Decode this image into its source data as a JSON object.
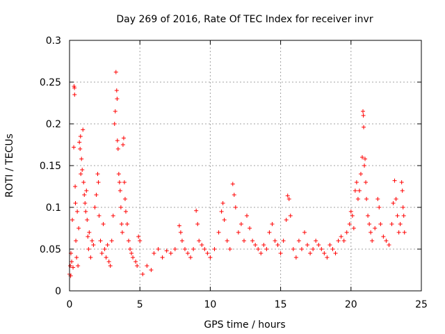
{
  "chart_data": {
    "type": "scatter",
    "title": "Day 269 of 2016, Rate Of TEC Index for receiver invr",
    "xlabel": "GPS time / hours",
    "ylabel": "ROTI / TECUs",
    "xlim": [
      0,
      25
    ],
    "ylim": [
      0,
      0.3
    ],
    "grid": true,
    "marker": "+",
    "series_color": "#ff0000",
    "x_ticks": [
      {
        "value": 0,
        "label": "0"
      },
      {
        "value": 5,
        "label": "5"
      },
      {
        "value": 10,
        "label": "10"
      },
      {
        "value": 15,
        "label": "15"
      },
      {
        "value": 20,
        "label": "20"
      },
      {
        "value": 25,
        "label": "25"
      }
    ],
    "y_ticks": [
      {
        "value": 0,
        "label": "0"
      },
      {
        "value": 0.05,
        "label": "0.05"
      },
      {
        "value": 0.1,
        "label": "0.1"
      },
      {
        "value": 0.15,
        "label": "0.15"
      },
      {
        "value": 0.2,
        "label": "0.2"
      },
      {
        "value": 0.25,
        "label": "0.25"
      },
      {
        "value": 0.3,
        "label": "0.3"
      }
    ],
    "points": [
      [
        0.0,
        0.02
      ],
      [
        0.05,
        0.03
      ],
      [
        0.08,
        0.018
      ],
      [
        0.1,
        0.045
      ],
      [
        0.15,
        0.035
      ],
      [
        0.2,
        0.085
      ],
      [
        0.25,
        0.028
      ],
      [
        0.3,
        0.172
      ],
      [
        0.32,
        0.245
      ],
      [
        0.35,
        0.243
      ],
      [
        0.36,
        0.235
      ],
      [
        0.4,
        0.125
      ],
      [
        0.42,
        0.105
      ],
      [
        0.45,
        0.06
      ],
      [
        0.5,
        0.04
      ],
      [
        0.55,
        0.095
      ],
      [
        0.6,
        0.03
      ],
      [
        0.65,
        0.075
      ],
      [
        0.7,
        0.178
      ],
      [
        0.75,
        0.17
      ],
      [
        0.78,
        0.185
      ],
      [
        0.8,
        0.14
      ],
      [
        0.85,
        0.158
      ],
      [
        0.9,
        0.145
      ],
      [
        0.95,
        0.193
      ],
      [
        1.0,
        0.13
      ],
      [
        1.05,
        0.115
      ],
      [
        1.1,
        0.105
      ],
      [
        1.15,
        0.095
      ],
      [
        1.2,
        0.12
      ],
      [
        1.25,
        0.085
      ],
      [
        1.3,
        0.065
      ],
      [
        1.35,
        0.05
      ],
      [
        1.4,
        0.07
      ],
      [
        1.5,
        0.04
      ],
      [
        1.6,
        0.06
      ],
      [
        1.7,
        0.055
      ],
      [
        1.8,
        0.1
      ],
      [
        1.9,
        0.115
      ],
      [
        2.0,
        0.14
      ],
      [
        2.05,
        0.13
      ],
      [
        2.1,
        0.09
      ],
      [
        2.2,
        0.06
      ],
      [
        2.3,
        0.045
      ],
      [
        2.4,
        0.08
      ],
      [
        2.5,
        0.05
      ],
      [
        2.6,
        0.04
      ],
      [
        2.7,
        0.055
      ],
      [
        2.8,
        0.035
      ],
      [
        2.9,
        0.03
      ],
      [
        3.0,
        0.06
      ],
      [
        3.1,
        0.09
      ],
      [
        3.2,
        0.2
      ],
      [
        3.25,
        0.215
      ],
      [
        3.3,
        0.262
      ],
      [
        3.35,
        0.24
      ],
      [
        3.38,
        0.23
      ],
      [
        3.4,
        0.18
      ],
      [
        3.45,
        0.17
      ],
      [
        3.5,
        0.14
      ],
      [
        3.55,
        0.13
      ],
      [
        3.6,
        0.12
      ],
      [
        3.65,
        0.1
      ],
      [
        3.7,
        0.08
      ],
      [
        3.75,
        0.07
      ],
      [
        3.8,
        0.175
      ],
      [
        3.85,
        0.183
      ],
      [
        3.9,
        0.13
      ],
      [
        3.95,
        0.11
      ],
      [
        4.0,
        0.095
      ],
      [
        4.1,
        0.08
      ],
      [
        4.2,
        0.06
      ],
      [
        4.3,
        0.05
      ],
      [
        4.4,
        0.045
      ],
      [
        4.5,
        0.04
      ],
      [
        4.7,
        0.035
      ],
      [
        4.8,
        0.03
      ],
      [
        4.9,
        0.065
      ],
      [
        5.0,
        0.06
      ],
      [
        5.2,
        0.02
      ],
      [
        5.5,
        0.03
      ],
      [
        5.8,
        0.025
      ],
      [
        6.0,
        0.045
      ],
      [
        6.3,
        0.05
      ],
      [
        6.6,
        0.04
      ],
      [
        6.9,
        0.048
      ],
      [
        7.2,
        0.045
      ],
      [
        7.5,
        0.05
      ],
      [
        7.8,
        0.078
      ],
      [
        7.9,
        0.07
      ],
      [
        8.0,
        0.06
      ],
      [
        8.2,
        0.05
      ],
      [
        8.4,
        0.045
      ],
      [
        8.6,
        0.04
      ],
      [
        8.8,
        0.05
      ],
      [
        9.0,
        0.096
      ],
      [
        9.1,
        0.08
      ],
      [
        9.2,
        0.06
      ],
      [
        9.4,
        0.055
      ],
      [
        9.6,
        0.05
      ],
      [
        9.8,
        0.045
      ],
      [
        10.0,
        0.04
      ],
      [
        10.3,
        0.05
      ],
      [
        10.6,
        0.07
      ],
      [
        10.8,
        0.095
      ],
      [
        10.9,
        0.105
      ],
      [
        11.0,
        0.085
      ],
      [
        11.2,
        0.06
      ],
      [
        11.4,
        0.05
      ],
      [
        11.6,
        0.128
      ],
      [
        11.7,
        0.115
      ],
      [
        11.8,
        0.1
      ],
      [
        12.0,
        0.07
      ],
      [
        12.2,
        0.08
      ],
      [
        12.4,
        0.06
      ],
      [
        12.6,
        0.09
      ],
      [
        12.8,
        0.075
      ],
      [
        13.0,
        0.06
      ],
      [
        13.2,
        0.055
      ],
      [
        13.4,
        0.05
      ],
      [
        13.6,
        0.045
      ],
      [
        13.8,
        0.055
      ],
      [
        14.0,
        0.05
      ],
      [
        14.2,
        0.07
      ],
      [
        14.4,
        0.08
      ],
      [
        14.6,
        0.06
      ],
      [
        14.8,
        0.055
      ],
      [
        15.0,
        0.045
      ],
      [
        15.2,
        0.06
      ],
      [
        15.4,
        0.085
      ],
      [
        15.5,
        0.114
      ],
      [
        15.6,
        0.11
      ],
      [
        15.7,
        0.09
      ],
      [
        15.9,
        0.05
      ],
      [
        16.1,
        0.04
      ],
      [
        16.3,
        0.06
      ],
      [
        16.5,
        0.05
      ],
      [
        16.7,
        0.07
      ],
      [
        16.9,
        0.055
      ],
      [
        17.1,
        0.045
      ],
      [
        17.3,
        0.05
      ],
      [
        17.5,
        0.06
      ],
      [
        17.7,
        0.055
      ],
      [
        17.9,
        0.05
      ],
      [
        18.1,
        0.045
      ],
      [
        18.3,
        0.04
      ],
      [
        18.5,
        0.055
      ],
      [
        18.7,
        0.05
      ],
      [
        18.9,
        0.045
      ],
      [
        19.1,
        0.06
      ],
      [
        19.3,
        0.065
      ],
      [
        19.5,
        0.06
      ],
      [
        19.7,
        0.07
      ],
      [
        19.9,
        0.08
      ],
      [
        20.0,
        0.095
      ],
      [
        20.1,
        0.09
      ],
      [
        20.2,
        0.075
      ],
      [
        20.3,
        0.12
      ],
      [
        20.4,
        0.13
      ],
      [
        20.5,
        0.11
      ],
      [
        20.6,
        0.12
      ],
      [
        20.7,
        0.14
      ],
      [
        20.8,
        0.16
      ],
      [
        20.85,
        0.215
      ],
      [
        20.88,
        0.21
      ],
      [
        20.9,
        0.196
      ],
      [
        20.95,
        0.15
      ],
      [
        21.0,
        0.158
      ],
      [
        21.05,
        0.13
      ],
      [
        21.1,
        0.11
      ],
      [
        21.2,
        0.09
      ],
      [
        21.3,
        0.08
      ],
      [
        21.4,
        0.07
      ],
      [
        21.5,
        0.06
      ],
      [
        21.7,
        0.075
      ],
      [
        21.9,
        0.11
      ],
      [
        22.0,
        0.1
      ],
      [
        22.1,
        0.08
      ],
      [
        22.3,
        0.065
      ],
      [
        22.5,
        0.06
      ],
      [
        22.7,
        0.055
      ],
      [
        22.9,
        0.08
      ],
      [
        23.0,
        0.105
      ],
      [
        23.1,
        0.132
      ],
      [
        23.2,
        0.11
      ],
      [
        23.3,
        0.09
      ],
      [
        23.4,
        0.07
      ],
      [
        23.5,
        0.08
      ],
      [
        23.6,
        0.13
      ],
      [
        23.65,
        0.12
      ],
      [
        23.7,
        0.1
      ],
      [
        23.75,
        0.09
      ],
      [
        23.8,
        0.07
      ]
    ]
  }
}
